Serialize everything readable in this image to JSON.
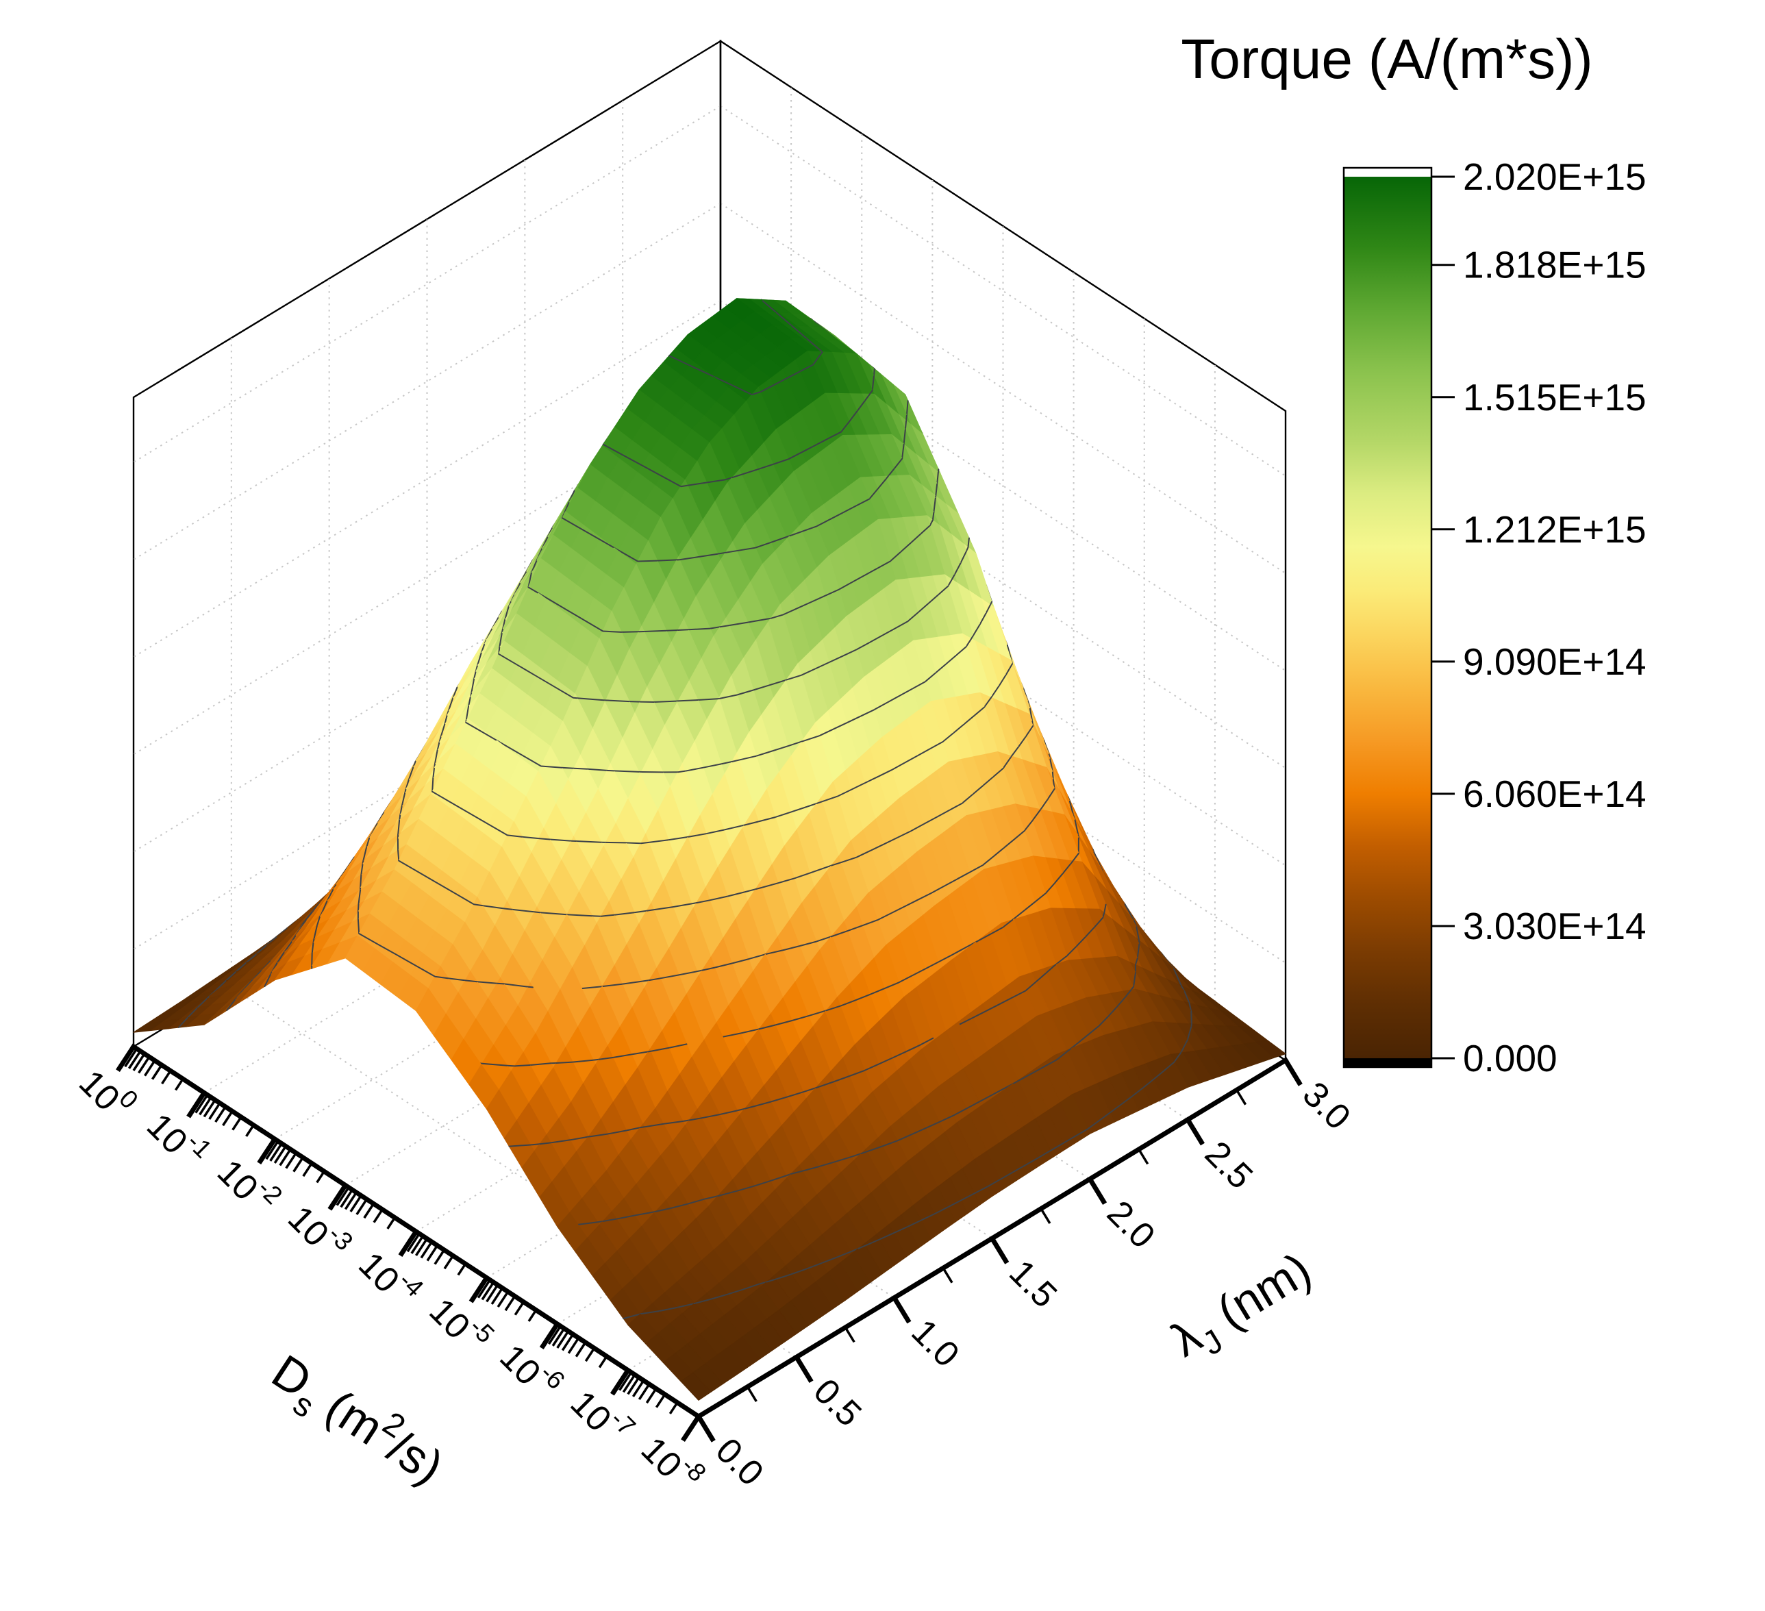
{
  "title": {
    "text": "Torque (A/(m*s))"
  },
  "colors": {
    "background": "#ffffff",
    "axis": "#000000",
    "frame": "#000000",
    "grid": "#c6c6c6",
    "contour": "#3c4148",
    "wall_fill": "#ffffff"
  },
  "colorbar": {
    "tick_labels": [
      "2.020E+15",
      "1.818E+15",
      "1.515E+15",
      "1.212E+15",
      "9.090E+14",
      "6.060E+14",
      "3.030E+14",
      "0.000"
    ],
    "tick_values": [
      2020000000000000.0,
      1818000000000000.0,
      1515000000000000.0,
      1212000000000000.0,
      909000000000000.0,
      606000000000000.0,
      303000000000000.0,
      0
    ],
    "above_max_color": "#ffffff",
    "below_min_color": "#000000",
    "border_color": "#000000"
  },
  "axes": {
    "ds": {
      "scale": "log",
      "tick_base": "10",
      "tick_exponents": [
        0,
        -1,
        -2,
        -3,
        -4,
        -5,
        -6,
        -7,
        -8
      ],
      "title_parts": [
        {
          "t": "D"
        },
        {
          "t": "s",
          "sub": true
        },
        {
          "t": " (m"
        },
        {
          "t": "2",
          "sup": true
        },
        {
          "t": "/s)"
        }
      ]
    },
    "lambda": {
      "scale": "linear",
      "ticks": [
        "0.0",
        "0.5",
        "1.0",
        "1.5",
        "2.0",
        "2.5",
        "3.0"
      ],
      "tick_values": [
        0,
        0.5,
        1.0,
        1.5,
        2.0,
        2.5,
        3.0
      ],
      "minor_step": 0.25,
      "title_parts": [
        {
          "t": "λ"
        },
        {
          "t": "J",
          "sub": true
        },
        {
          "t": " (nm)"
        }
      ]
    },
    "z": {
      "min": 0,
      "max": 2020000000000000.0,
      "wall_grid_step": 303000000000000.0
    }
  },
  "grid": {
    "lambda_lines": [
      0.5,
      1.0,
      1.5,
      2.0,
      2.5
    ],
    "ds_log_lines": [
      -1,
      -2,
      -3,
      -4,
      -5,
      -6,
      -7
    ]
  },
  "chart_data": {
    "type": "surface",
    "title": "Torque (A/(m*s))",
    "x_label": "Ds (m2/s)",
    "x_scale": "log",
    "x_values_log10": [
      0,
      -1,
      -2,
      -3,
      -4,
      -5,
      -6,
      -7,
      -8
    ],
    "y_label": "lambda_J (nm)",
    "y_values": [
      0,
      0.25,
      0.5,
      0.75,
      1.0,
      1.25,
      1.5,
      1.75,
      2.0,
      2.25,
      2.5,
      2.75,
      3.0
    ],
    "z_label": "Torque (A/(m*s))",
    "z_min": 0,
    "z_max": 2020000000000000.0,
    "contour_step": 151500000000000.0,
    "colorbar_tick_step": 303000000000000.0,
    "z": [
      [
        40400000000000.0,
        60600000000000.0,
        80800000000000.0,
        97000000000000.0,
        101000000000000.0,
        101000000000000.0,
        97000000000000.0,
        90900000000000.0,
        80800000000000.0,
        70700000000000.0,
        60600000000000.0,
        50500000000000.0,
        44400000000000.0
      ],
      [
        60600000000000.0,
        303000000000000.0,
        566000000000000.0,
        667000000000000.0,
        707000000000000.0,
        687000000000000.0,
        646000000000000.0,
        566000000000000.0,
        485000000000000.0,
        404000000000000.0,
        323000000000000.0,
        263000000000000.0,
        212000000000000.0
      ],
      [
        80800000000000.0,
        707000000000000.0,
        1250000000000000.0,
        1450000000000000.0,
        1520000000000000.0,
        1490000000000000.0,
        1410000000000000.0,
        1270000000000000.0,
        1110000000000000.0,
        929000000000000.0,
        768000000000000.0,
        616000000000000.0,
        495000000000000.0
      ],
      [
        101000000000000.0,
        1010000000000000.0,
        1720000000000000.0,
        1920000000000000.0,
        2020000000000000.0,
        2000000000000000.0,
        1920000000000000.0,
        1780000000000000.0,
        1580000000000000.0,
        1330000000000000.0,
        1110000000000000.0,
        889000000000000.0,
        707000000000000.0
      ],
      [
        101000000000000.0,
        970000000000000.0,
        1680000000000000.0,
        1900000000000000.0,
        2000000000000000.0,
        1980000000000000.0,
        1900000000000000.0,
        1760000000000000.0,
        1560000000000000.0,
        1310000000000000.0,
        1090000000000000.0,
        869000000000000.0,
        687000000000000.0
      ],
      [
        80800000000000.0,
        768000000000000.0,
        1330000000000000.0,
        1540000000000000.0,
        1620000000000000.0,
        1600000000000000.0,
        1540000000000000.0,
        1410000000000000.0,
        1230000000000000.0,
        1030000000000000.0,
        848000000000000.0,
        667000000000000.0,
        525000000000000.0
      ],
      [
        60600000000000.0,
        444000000000000.0,
        808000000000000.0,
        949000000000000.0,
        1010000000000000.0,
        990000000000000.0,
        949000000000000.0,
        848000000000000.0,
        727000000000000.0,
        606000000000000.0,
        485000000000000.0,
        384000000000000.0,
        303000000000000.0
      ],
      [
        40400000000000.0,
        202000000000000.0,
        364000000000000.0,
        444000000000000.0,
        485000000000000.0,
        465000000000000.0,
        444000000000000.0,
        404000000000000.0,
        343000000000000.0,
        283000000000000.0,
        222000000000000.0,
        182000000000000.0,
        141000000000000.0
      ],
      [
        20200000000000.0,
        60600000000000.0,
        101000000000000.0,
        121000000000000.0,
        141000000000000.0,
        137000000000000.0,
        131000000000000.0,
        117000000000000.0,
        101000000000000.0,
        84800000000000.0,
        72700000000000.0,
        60600000000000.0,
        50500000000000.0
      ]
    ],
    "colormap_stops": [
      {
        "t": 0.0,
        "c": "#4a2403"
      },
      {
        "t": 0.06,
        "c": "#5e2e03"
      },
      {
        "t": 0.12,
        "c": "#7a3b02"
      },
      {
        "t": 0.18,
        "c": "#9c4b00"
      },
      {
        "t": 0.24,
        "c": "#c25e00"
      },
      {
        "t": 0.3,
        "c": "#ef7e00"
      },
      {
        "t": 0.36,
        "c": "#f69a24"
      },
      {
        "t": 0.42,
        "c": "#f9b83f"
      },
      {
        "t": 0.48,
        "c": "#fbd55e"
      },
      {
        "t": 0.53,
        "c": "#fbeb78"
      },
      {
        "t": 0.58,
        "c": "#f6f78e"
      },
      {
        "t": 0.64,
        "c": "#dcec81"
      },
      {
        "t": 0.7,
        "c": "#b4d767"
      },
      {
        "t": 0.78,
        "c": "#8ac24d"
      },
      {
        "t": 0.85,
        "c": "#5ea832"
      },
      {
        "t": 0.92,
        "c": "#2f8716"
      },
      {
        "t": 1.0,
        "c": "#076607"
      }
    ]
  }
}
